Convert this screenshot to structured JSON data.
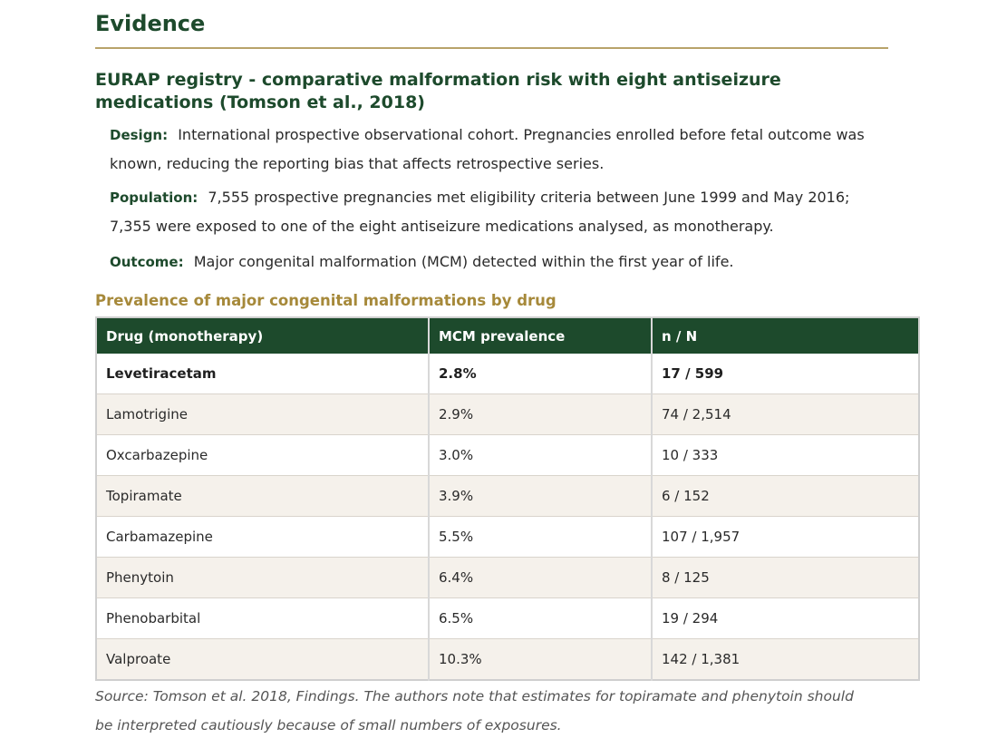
{
  "section": {
    "title": "Evidence"
  },
  "study": {
    "title": "EURAP registry - comparative malformation risk with eight antiseizure medications (Tomson et al., 2018)",
    "design": {
      "label": "Design:",
      "text": "International prospective observational cohort. Pregnancies enrolled before fetal outcome was known, reducing the reporting bias that affects retrospective series."
    },
    "population": {
      "label": "Population:",
      "text": "7,555 prospective pregnancies met eligibility criteria between June 1999 and May 2016; 7,355 were exposed to one of the eight antiseizure medications analysed, as monotherapy."
    },
    "outcome": {
      "label": "Outcome:",
      "text": "Major congenital malformation (MCM) detected within the first year of life."
    }
  },
  "table": {
    "caption": "Prevalence of major congenital malformations by drug",
    "headers": [
      "Drug (monotherapy)",
      "MCM prevalence",
      "n / N"
    ],
    "rows": [
      [
        "Levetiracetam",
        "2.8%",
        "17 / 599"
      ],
      [
        "Lamotrigine",
        "2.9%",
        "74 / 2,514"
      ],
      [
        "Oxcarbazepine",
        "3.0%",
        "10 / 333"
      ],
      [
        "Topiramate",
        "3.9%",
        "6 / 152"
      ],
      [
        "Carbamazepine",
        "5.5%",
        "107 / 1,957"
      ],
      [
        "Phenytoin",
        "6.4%",
        "8 / 125"
      ],
      [
        "Phenobarbital",
        "6.5%",
        "19 / 294"
      ],
      [
        "Valproate",
        "10.3%",
        "142 / 1,381"
      ]
    ]
  },
  "source": "Source: Tomson et al. 2018, Findings. The authors note that estimates for topiramate and phenytoin should be interpreted cautiously because of small numbers of exposures.",
  "colors": {
    "heading": "#1d4a2c",
    "accent": "#a6893a",
    "rule": "#b8a36a",
    "row_alt": "#f5f1eb"
  }
}
